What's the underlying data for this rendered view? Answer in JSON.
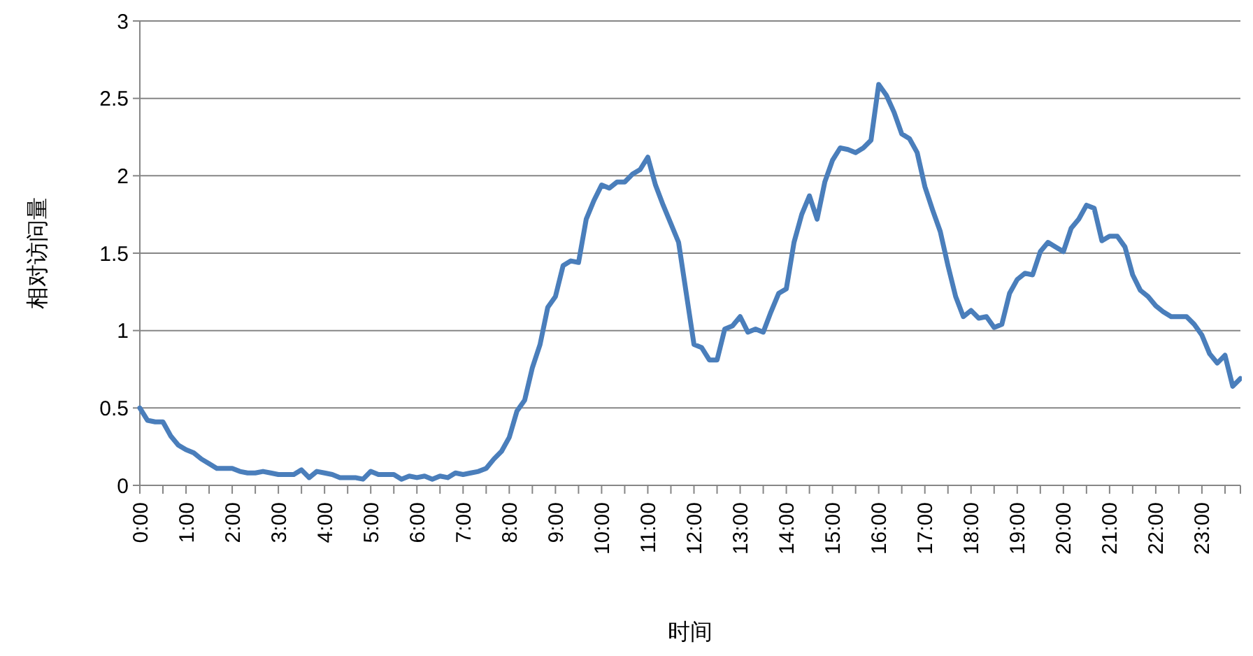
{
  "chart_data": {
    "type": "line",
    "xlabel": "时间",
    "ylabel": "相对访问量",
    "categories": [
      "0:00",
      null,
      null,
      null,
      null,
      null,
      "1:00",
      null,
      null,
      null,
      null,
      null,
      "2:00",
      null,
      null,
      null,
      null,
      null,
      "3:00",
      null,
      null,
      null,
      null,
      null,
      "4:00",
      null,
      null,
      null,
      null,
      null,
      "5:00",
      null,
      null,
      null,
      null,
      null,
      "6:00",
      null,
      null,
      null,
      null,
      null,
      "7:00",
      null,
      null,
      null,
      null,
      null,
      "8:00",
      null,
      null,
      null,
      null,
      null,
      "9:00",
      null,
      null,
      null,
      null,
      null,
      "10:00",
      null,
      null,
      null,
      null,
      null,
      "11:00",
      null,
      null,
      null,
      null,
      null,
      "12:00",
      null,
      null,
      null,
      null,
      null,
      "13:00",
      null,
      null,
      null,
      null,
      null,
      "14:00",
      null,
      null,
      null,
      null,
      null,
      "15:00",
      null,
      null,
      null,
      null,
      null,
      "16:00",
      null,
      null,
      null,
      null,
      null,
      "17:00",
      null,
      null,
      null,
      null,
      null,
      "18:00",
      null,
      null,
      null,
      null,
      null,
      "19:00",
      null,
      null,
      null,
      null,
      null,
      "20:00",
      null,
      null,
      null,
      null,
      null,
      "21:00",
      null,
      null,
      null,
      null,
      null,
      "22:00",
      null,
      null,
      null,
      null,
      null,
      "23:00",
      null,
      null,
      null,
      null,
      null
    ],
    "series": [
      {
        "color": "#4a7ebb",
        "values": [
          0.5,
          0.42,
          0.41,
          0.41,
          0.32,
          0.26,
          0.23,
          0.21,
          0.17,
          0.14,
          0.11,
          0.11,
          0.11,
          0.09,
          0.08,
          0.08,
          0.09,
          0.08,
          0.07,
          0.07,
          0.07,
          0.1,
          0.05,
          0.09,
          0.08,
          0.07,
          0.05,
          0.05,
          0.05,
          0.04,
          0.09,
          0.07,
          0.07,
          0.07,
          0.04,
          0.06,
          0.05,
          0.06,
          0.04,
          0.06,
          0.05,
          0.08,
          0.07,
          0.08,
          0.09,
          0.11,
          0.17,
          0.22,
          0.31,
          0.48,
          0.55,
          0.76,
          0.91,
          1.15,
          1.22,
          1.42,
          1.45,
          1.44,
          1.72,
          1.84,
          1.94,
          1.92,
          1.96,
          1.96,
          2.01,
          2.04,
          2.12,
          1.94,
          1.81,
          1.69,
          1.57,
          1.24,
          0.91,
          0.89,
          0.81,
          0.81,
          1.01,
          1.03,
          1.09,
          0.99,
          1.01,
          0.99,
          1.12,
          1.24,
          1.27,
          1.57,
          1.75,
          1.87,
          1.72,
          1.96,
          2.1,
          2.18,
          2.17,
          2.15,
          2.18,
          2.23,
          2.59,
          2.52,
          2.41,
          2.27,
          2.24,
          2.15,
          1.93,
          1.78,
          1.64,
          1.42,
          1.22,
          1.09,
          1.13,
          1.08,
          1.09,
          1.02,
          1.04,
          1.24,
          1.33,
          1.37,
          1.36,
          1.51,
          1.57,
          1.54,
          1.51,
          1.66,
          1.72,
          1.81,
          1.79,
          1.58,
          1.61,
          1.61,
          1.54,
          1.36,
          1.26,
          1.22,
          1.16,
          1.12,
          1.09,
          1.09,
          1.09,
          1.04,
          0.97,
          0.85,
          0.79,
          0.84,
          0.64,
          0.69
        ]
      }
    ],
    "ylim": [
      0,
      3
    ],
    "yticks": [
      0,
      0.5,
      1,
      1.5,
      2,
      2.5,
      3
    ],
    "grid": "y",
    "marker": "none",
    "line_style": "solid"
  }
}
